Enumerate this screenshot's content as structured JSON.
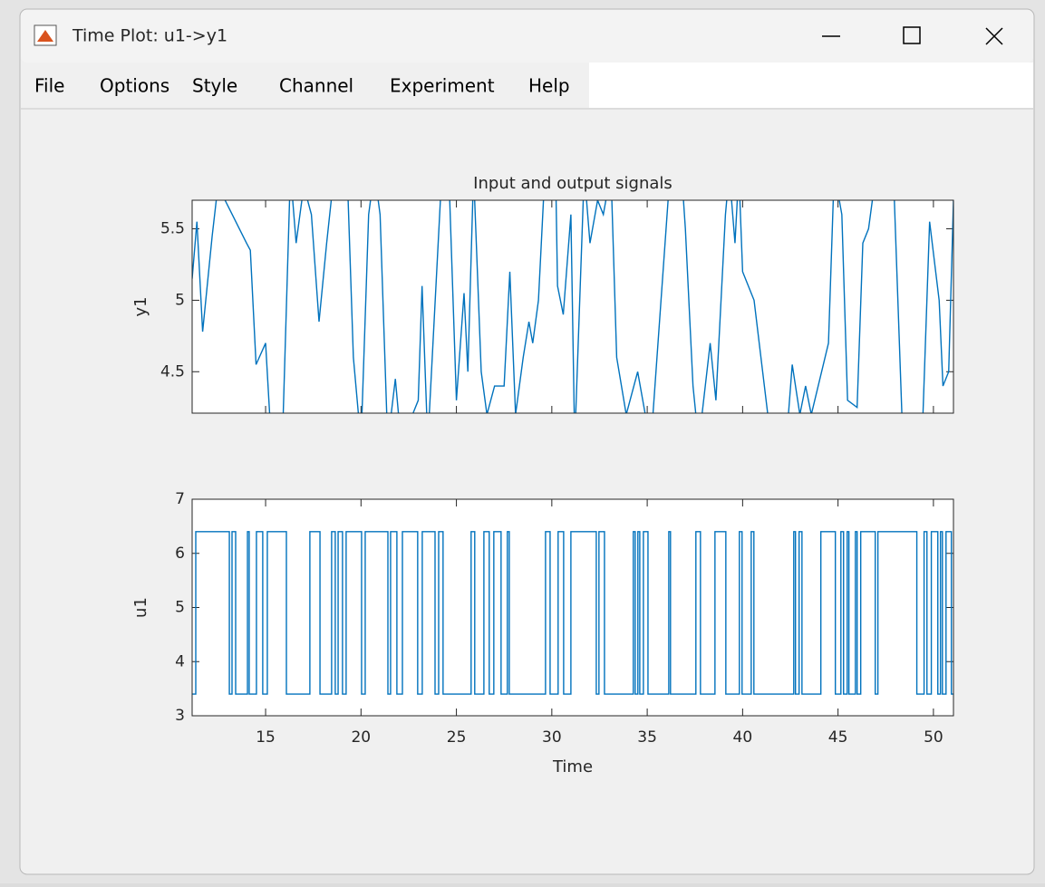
{
  "window": {
    "title": "Time Plot: u1->y1"
  },
  "menu": [
    "File",
    "Options",
    "Style",
    "Channel",
    "Experiment",
    "Help"
  ],
  "chart_data": [
    {
      "type": "line",
      "title": "Input and output signals",
      "ylabel": "y1",
      "color": "#0072bd",
      "xlim": [
        11.15,
        51.05
      ],
      "xticks": [
        15,
        20,
        25,
        30,
        35,
        40,
        45,
        50
      ],
      "show_xtick_labels": false,
      "ylim": [
        4.21,
        5.7
      ],
      "yticks": [
        4.5,
        5,
        5.5
      ],
      "x": [
        11.15,
        11.4,
        11.7,
        12.2,
        12.5,
        14.0,
        14.2,
        14.5,
        15.0,
        15.3,
        15.9,
        16.3,
        16.6,
        17.0,
        17.4,
        17.8,
        18.2,
        18.6,
        19.3,
        19.6,
        20.0,
        20.4,
        20.7,
        21.0,
        21.4,
        21.8,
        22.1,
        23.0,
        23.2,
        23.5,
        24.2,
        24.6,
        25.0,
        25.4,
        25.6,
        25.9,
        26.3,
        26.6,
        27.0,
        27.5,
        27.8,
        28.1,
        28.5,
        28.8,
        29.0,
        29.3,
        29.6,
        30.2,
        30.3,
        30.6,
        31.0,
        31.2,
        31.7,
        32.0,
        32.4,
        32.7,
        33.1,
        33.4,
        33.9,
        34.5,
        34.9,
        35.3,
        36.2,
        36.8,
        37.0,
        37.4,
        37.7,
        38.3,
        38.6,
        39.1,
        39.3,
        39.6,
        39.8,
        40.0,
        40.6,
        41.5,
        42.4,
        42.6,
        43.0,
        43.3,
        43.6,
        44.5,
        44.8,
        45.2,
        45.5,
        46.0,
        46.3,
        46.6,
        47.0,
        47.9,
        48.4,
        49.4,
        49.8,
        50.3,
        50.5,
        50.8,
        51.05
      ],
      "values": [
        5.15,
        5.55,
        4.78,
        5.45,
        5.8,
        5.4,
        5.35,
        4.55,
        4.7,
        4.0,
        4.1,
        5.9,
        5.4,
        5.8,
        5.6,
        4.85,
        5.4,
        5.9,
        5.8,
        4.6,
        4.0,
        5.6,
        5.9,
        5.6,
        4.0,
        4.45,
        4.0,
        4.3,
        5.1,
        4.0,
        5.8,
        5.9,
        4.3,
        5.05,
        4.5,
        5.9,
        4.5,
        4.2,
        4.4,
        4.4,
        5.2,
        4.2,
        4.6,
        4.85,
        4.7,
        5.0,
        5.8,
        5.9,
        5.1,
        4.9,
        5.6,
        4.0,
        5.9,
        5.4,
        5.7,
        5.6,
        5.9,
        4.6,
        4.2,
        4.5,
        4.2,
        4.2,
        5.9,
        5.9,
        5.5,
        4.4,
        4.0,
        4.7,
        4.3,
        5.6,
        5.9,
        5.4,
        5.9,
        5.2,
        5.0,
        4.0,
        4.2,
        4.55,
        4.2,
        4.4,
        4.2,
        4.7,
        5.9,
        5.6,
        4.3,
        4.25,
        5.4,
        5.5,
        5.9,
        5.9,
        4.0,
        4.0,
        5.55,
        5.0,
        4.4,
        4.5,
        5.7
      ]
    },
    {
      "type": "line",
      "drawstyle": "steps-post",
      "ylabel": "u1",
      "xlabel": "Time",
      "color": "#0072bd",
      "xlim": [
        11.15,
        51.05
      ],
      "xticks": [
        15,
        20,
        25,
        30,
        35,
        40,
        45,
        50
      ],
      "show_xtick_labels": true,
      "ylim": [
        3,
        7
      ],
      "yticks": [
        3,
        4,
        5,
        6,
        7
      ],
      "x": [
        11.15,
        11.34,
        13.1,
        13.24,
        13.43,
        14.05,
        14.14,
        14.52,
        14.85,
        15.09,
        16.09,
        17.32,
        17.85,
        18.46,
        18.65,
        18.8,
        19.03,
        19.22,
        20.03,
        20.22,
        21.41,
        21.55,
        21.88,
        22.17,
        22.97,
        23.21,
        23.88,
        24.07,
        24.3,
        25.77,
        25.96,
        26.44,
        26.72,
        26.96,
        27.34,
        27.67,
        27.77,
        29.67,
        29.91,
        30.33,
        30.62,
        31.0,
        32.33,
        32.47,
        32.76,
        34.27,
        34.37,
        34.51,
        34.61,
        34.8,
        35.04,
        36.13,
        36.22,
        37.55,
        37.79,
        38.55,
        39.12,
        39.83,
        39.97,
        40.45,
        40.59,
        42.68,
        42.77,
        42.96,
        43.11,
        44.1,
        44.86,
        45.15,
        45.29,
        45.48,
        45.57,
        45.91,
        46.0,
        46.19,
        46.95,
        47.09,
        49.13,
        49.51,
        49.66,
        49.89,
        50.23,
        50.37,
        50.47,
        50.66,
        50.94,
        51.05
      ],
      "values": [
        3.4,
        6.4,
        3.4,
        6.4,
        3.4,
        6.4,
        3.4,
        6.4,
        3.4,
        6.4,
        3.4,
        6.4,
        3.4,
        6.4,
        3.4,
        6.4,
        3.4,
        6.4,
        3.4,
        6.4,
        3.4,
        6.4,
        3.4,
        6.4,
        3.4,
        6.4,
        3.4,
        6.4,
        3.4,
        6.4,
        3.4,
        6.4,
        3.4,
        6.4,
        3.4,
        6.4,
        3.4,
        6.4,
        3.4,
        6.4,
        3.4,
        6.4,
        3.4,
        6.4,
        3.4,
        6.4,
        3.4,
        6.4,
        3.4,
        6.4,
        3.4,
        6.4,
        3.4,
        6.4,
        3.4,
        6.4,
        3.4,
        6.4,
        3.4,
        6.4,
        3.4,
        6.4,
        3.4,
        6.4,
        3.4,
        6.4,
        3.4,
        6.4,
        3.4,
        6.4,
        3.4,
        6.4,
        3.4,
        6.4,
        3.4,
        6.4,
        3.4,
        6.4,
        3.4,
        6.4,
        3.4,
        6.4,
        3.4,
        6.4,
        3.4,
        3.4
      ]
    }
  ]
}
